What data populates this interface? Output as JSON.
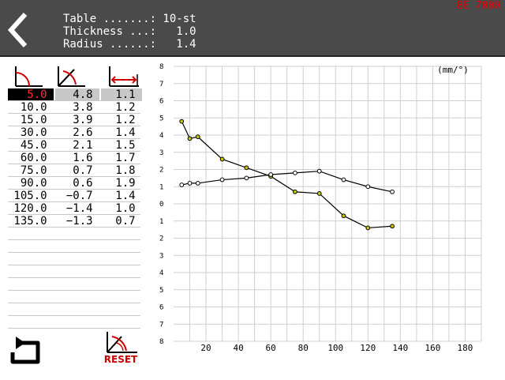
{
  "header": {
    "table_line": "Table .......: 10-st",
    "thickness_line": "Thickness ...:   1.0",
    "radius_line": "Radius ......:   1.4",
    "brand": "BE 7000"
  },
  "table": {
    "columns": [
      "angle-icon",
      "springback-icon",
      "radius-length-icon"
    ],
    "selected_row": 0,
    "rows": [
      [
        "5.0",
        "4.8",
        "1.1"
      ],
      [
        "10.0",
        "3.8",
        "1.2"
      ],
      [
        "15.0",
        "3.9",
        "1.2"
      ],
      [
        "30.0",
        "2.6",
        "1.4"
      ],
      [
        "45.0",
        "2.1",
        "1.5"
      ],
      [
        "60.0",
        "1.6",
        "1.7"
      ],
      [
        "75.0",
        "0.7",
        "1.8"
      ],
      [
        "90.0",
        "0.6",
        "1.9"
      ],
      [
        "105.0",
        "−0.7",
        "1.4"
      ],
      [
        "120.0",
        "−1.4",
        "1.0"
      ],
      [
        "135.0",
        "−1.3",
        "0.7"
      ]
    ]
  },
  "footer": {
    "undo_icon": "undo-icon",
    "reset_label": "RESET"
  },
  "chart_data": {
    "type": "line",
    "unit_label": "(mm/°)",
    "x_ticks": [
      "20",
      "40",
      "60",
      "80",
      "100",
      "120",
      "140",
      "160",
      "180"
    ],
    "y_tick_labels": [
      "8",
      "7",
      "6",
      "5",
      "4",
      "3",
      "2",
      "1",
      "0",
      "1",
      "2",
      "3",
      "4",
      "5",
      "6",
      "7",
      "8"
    ],
    "xlim": [
      0,
      190
    ],
    "ylim": [
      -8,
      8
    ],
    "grid": true,
    "series": [
      {
        "color": "#c8c800",
        "x": [
          5,
          10,
          15,
          30,
          45,
          60,
          75,
          90,
          105,
          120,
          135
        ],
        "values": [
          4.8,
          3.8,
          3.9,
          2.6,
          2.1,
          1.6,
          0.7,
          0.6,
          -0.7,
          -1.4,
          -1.3
        ]
      },
      {
        "color": "#ffffff",
        "x": [
          5,
          10,
          15,
          30,
          45,
          60,
          75,
          90,
          105,
          120,
          135
        ],
        "values": [
          1.1,
          1.2,
          1.2,
          1.4,
          1.5,
          1.7,
          1.8,
          1.9,
          1.4,
          1.0,
          0.7
        ]
      }
    ]
  }
}
